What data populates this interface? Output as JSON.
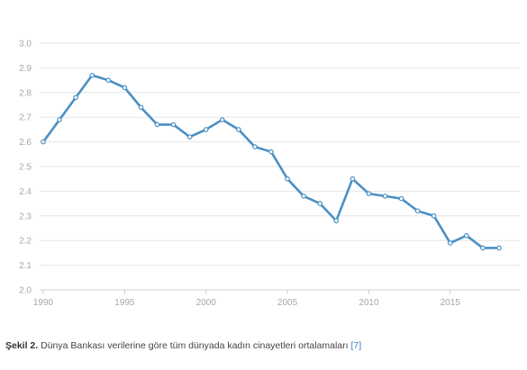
{
  "chart_data": {
    "type": "line",
    "title": "",
    "xlabel": "",
    "ylabel": "",
    "x": [
      1990,
      1991,
      1992,
      1993,
      1994,
      1995,
      1996,
      1997,
      1998,
      1999,
      2000,
      2001,
      2002,
      2003,
      2004,
      2005,
      2006,
      2007,
      2008,
      2009,
      2010,
      2011,
      2012,
      2013,
      2014,
      2015,
      2016,
      2017,
      2018
    ],
    "series": [
      {
        "values": [
          2.6,
          2.69,
          2.78,
          2.87,
          2.85,
          2.82,
          2.74,
          2.67,
          2.67,
          2.62,
          2.65,
          2.69,
          2.65,
          2.58,
          2.56,
          2.45,
          2.38,
          2.35,
          2.28,
          2.45,
          2.39,
          2.38,
          2.37,
          2.32,
          2.3,
          2.19,
          2.22,
          2.17,
          2.17
        ],
        "color": "#4a90c4"
      }
    ],
    "ylim": [
      2.0,
      3.0
    ],
    "xlim": [
      1990,
      2018.5
    ],
    "y_ticks": [
      "3.0",
      "2.9",
      "2.8",
      "2.7",
      "2.6",
      "2.5",
      "2.4",
      "2.3",
      "2.2",
      "2.1",
      "2.0"
    ],
    "x_ticks": [
      "1990",
      "1995",
      "2000",
      "2005",
      "2010",
      "2015"
    ],
    "grid": "horizontal",
    "legend": "none"
  },
  "caption": {
    "label": "Şekil 2.",
    "text": " Dünya Bankası verilerine göre tüm dünyada kadın cinayetleri ortalamaları ",
    "ref": "[7]"
  },
  "colors": {
    "line": "#4a90c4",
    "grid": "#e6e6e6",
    "tick_text": "#a8a8a8",
    "ref_link": "#3a7ebf"
  }
}
